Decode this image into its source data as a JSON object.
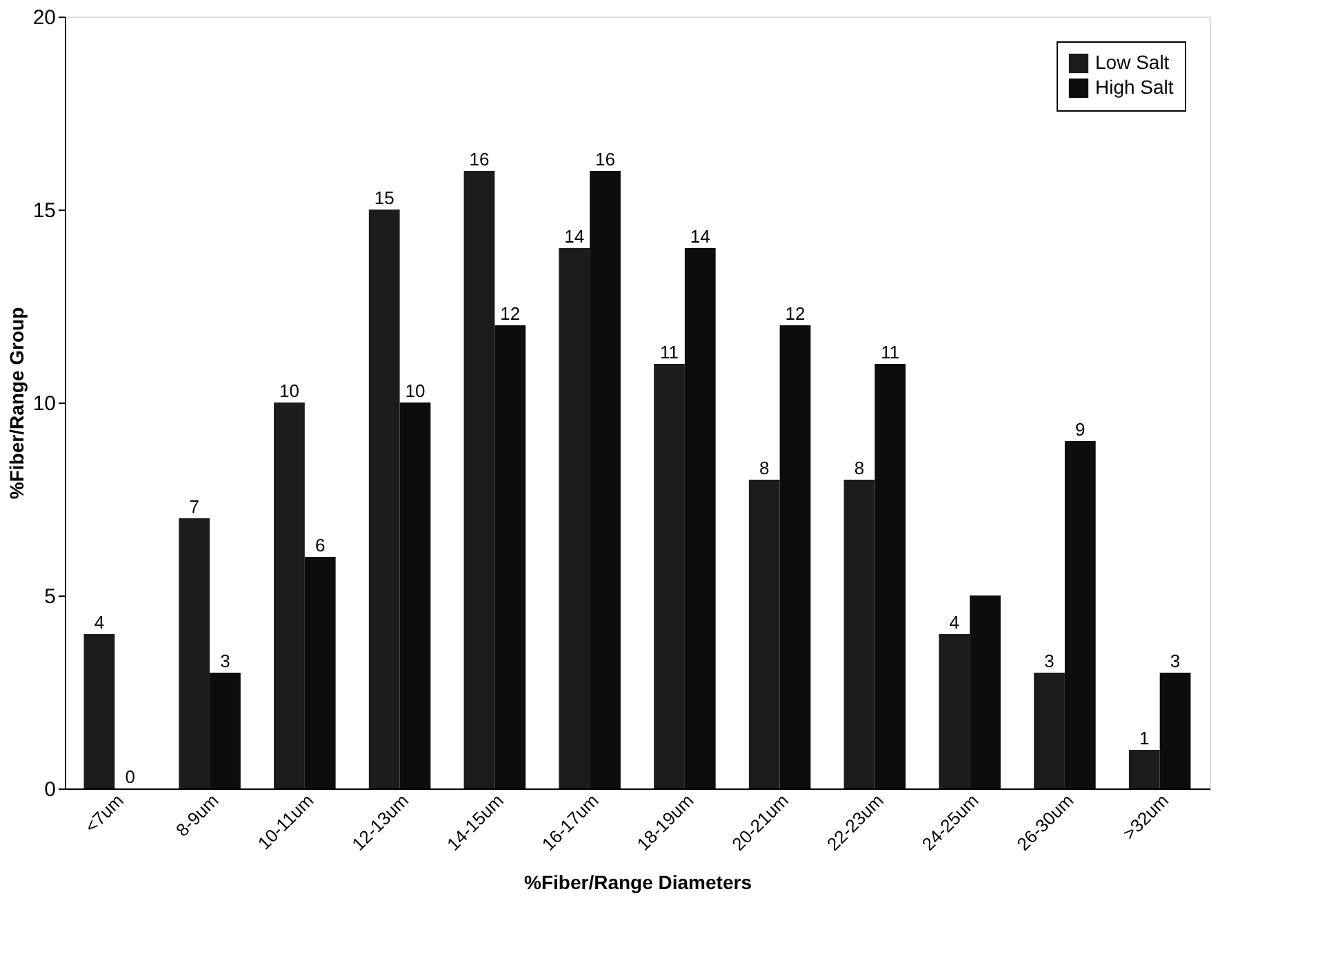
{
  "chart_data": {
    "type": "bar",
    "xlabel": "%Fiber/Range Diameters",
    "ylabel": "%Fiber/Range Group",
    "categories": [
      "<7um",
      "8-9um",
      "10-11um",
      "12-13um",
      "14-15um",
      "16-17um",
      "18-19um",
      "20-21um",
      "22-23um",
      "24-25um",
      "26-30um",
      ">32um"
    ],
    "series": [
      {
        "name": "Low Salt",
        "color": "#1c1c1c",
        "values": [
          4,
          7,
          10,
          15,
          16,
          14,
          11,
          8,
          8,
          4,
          3,
          1
        ],
        "value_labels": [
          "4",
          "7",
          "10",
          "15",
          "16",
          "14",
          "11",
          "8",
          "8",
          "4",
          "3",
          "1"
        ]
      },
      {
        "name": "High Salt",
        "color": "#0d0d0d",
        "values": [
          0,
          3,
          6,
          10,
          12,
          16,
          14,
          12,
          11,
          5,
          9,
          3
        ],
        "value_labels": [
          "0",
          "3",
          "6",
          "10",
          "12",
          "16",
          "14",
          "12",
          "11",
          null,
          "9",
          "3"
        ]
      }
    ],
    "ylim": [
      0,
      20
    ],
    "yticks": [
      0,
      5,
      10,
      15,
      20
    ],
    "grid": false,
    "legend": "top right"
  }
}
